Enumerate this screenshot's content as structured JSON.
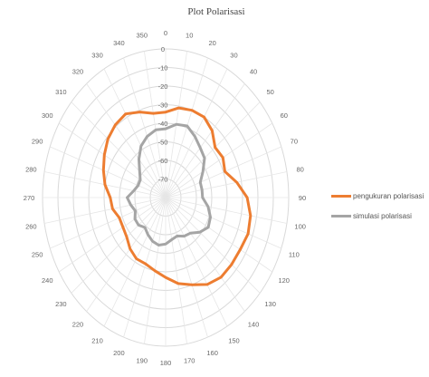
{
  "chart_data": {
    "type": "radar",
    "title": "Plot Polarisasi",
    "angles": [
      0,
      10,
      20,
      30,
      40,
      50,
      60,
      70,
      80,
      90,
      100,
      110,
      120,
      130,
      140,
      150,
      160,
      170,
      180,
      190,
      200,
      210,
      220,
      230,
      240,
      250,
      260,
      270,
      280,
      290,
      300,
      310,
      320,
      330,
      340,
      350
    ],
    "radial_ticks": [
      0,
      -10,
      -20,
      -30,
      -40,
      -50,
      -60,
      -70
    ],
    "rlim": [
      -80,
      0
    ],
    "grid": true,
    "legend_position": "right",
    "series": [
      {
        "name": "pengukuran polarisasi",
        "color": "#ED7D31",
        "values": [
          -34,
          -31,
          -30,
          -30,
          -33,
          -38,
          -37,
          -39,
          -33,
          -27,
          -24,
          -23,
          -24,
          -24,
          -24,
          -26,
          -30,
          -33,
          -37,
          -40,
          -42,
          -42,
          -44,
          -47,
          -48,
          -48,
          -45,
          -44,
          -40,
          -37,
          -34,
          -31,
          -29,
          -28,
          -31,
          -34
        ]
      },
      {
        "name": "simulasi polarisasi",
        "color": "#A5A5A5",
        "values": [
          -43,
          -40,
          -39,
          -42,
          -45,
          -47,
          -52,
          -56,
          -56,
          -56,
          -52,
          -49,
          -48,
          -51,
          -55,
          -56,
          -58,
          -57,
          -55,
          -54,
          -55,
          -57,
          -59,
          -57,
          -57,
          -59,
          -57,
          -55,
          -59,
          -61,
          -61,
          -58,
          -53,
          -48,
          -45,
          -43
        ]
      }
    ]
  }
}
